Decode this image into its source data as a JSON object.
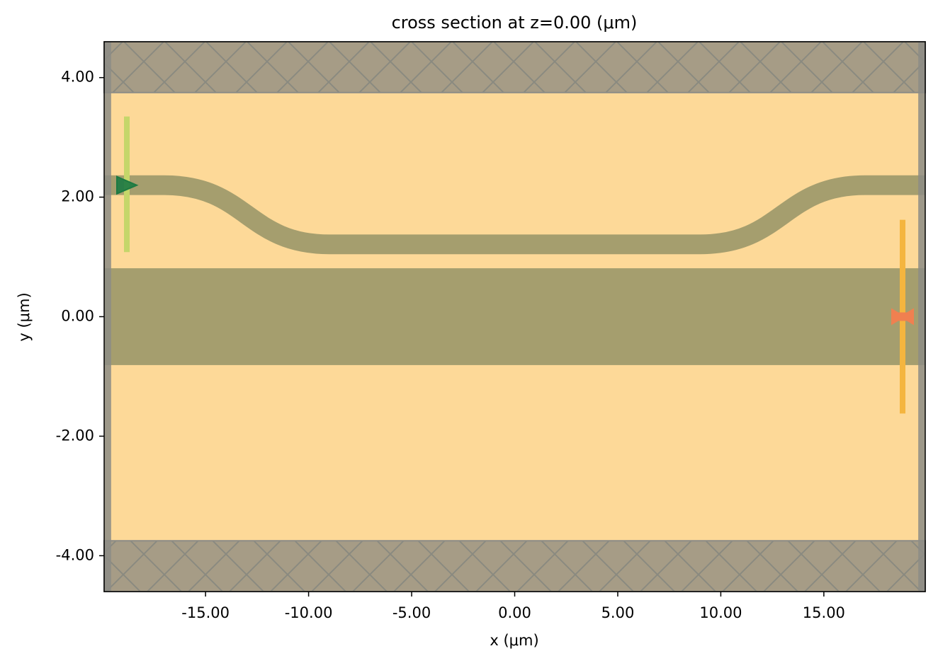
{
  "chart_data": {
    "type": "structure",
    "title": "cross section at z=0.00 (μm)",
    "xlabel": "x (μm)",
    "ylabel": "y (μm)",
    "xlim": [
      -19.92,
      19.92
    ],
    "ylim": [
      -4.6,
      4.6
    ],
    "xticks": [
      {
        "value": -15,
        "label": "-15.00"
      },
      {
        "value": -10,
        "label": "-10.00"
      },
      {
        "value": -5,
        "label": "-5.00"
      },
      {
        "value": 0,
        "label": "0.00"
      },
      {
        "value": 5,
        "label": "5.00"
      },
      {
        "value": 10,
        "label": "10.00"
      },
      {
        "value": 15,
        "label": "15.00"
      }
    ],
    "yticks": [
      {
        "value": -4,
        "label": "-4.00"
      },
      {
        "value": -2,
        "label": "-2.00"
      },
      {
        "value": 0,
        "label": "0.00"
      },
      {
        "value": 2,
        "label": "2.00"
      },
      {
        "value": 4,
        "label": "4.00"
      }
    ],
    "background_color": "#fdd998",
    "straight": {
      "y": [
        -0.81,
        0.81
      ],
      "color": "#a59e6e"
    },
    "bend": {
      "x": [
        -19.92,
        -17,
        -9,
        9,
        17,
        19.92
      ],
      "y": [
        2.2,
        2.2,
        1.21,
        1.21,
        2.2,
        2.2
      ],
      "width": 0.33,
      "color": "#a59e6e"
    },
    "pml": {
      "y": [
        [
          3.75,
          4.6
        ],
        [
          -4.6,
          -3.75
        ]
      ],
      "x": [
        [
          -19.92,
          -19.58
        ],
        [
          19.58,
          19.92
        ]
      ],
      "color": "#a69c86",
      "hatch_color": "#8a8a80",
      "edge_color": "#8c8c86"
    },
    "source": {
      "x": -18.82,
      "y": [
        1.08,
        3.35
      ],
      "marker_y": 2.2,
      "color": "#c5d66a",
      "marker_color": "#1c7a42"
    },
    "monitor": {
      "x": 18.82,
      "y": [
        -1.62,
        1.62
      ],
      "color": "#f4b53f",
      "marker_color": "#f08050"
    }
  }
}
